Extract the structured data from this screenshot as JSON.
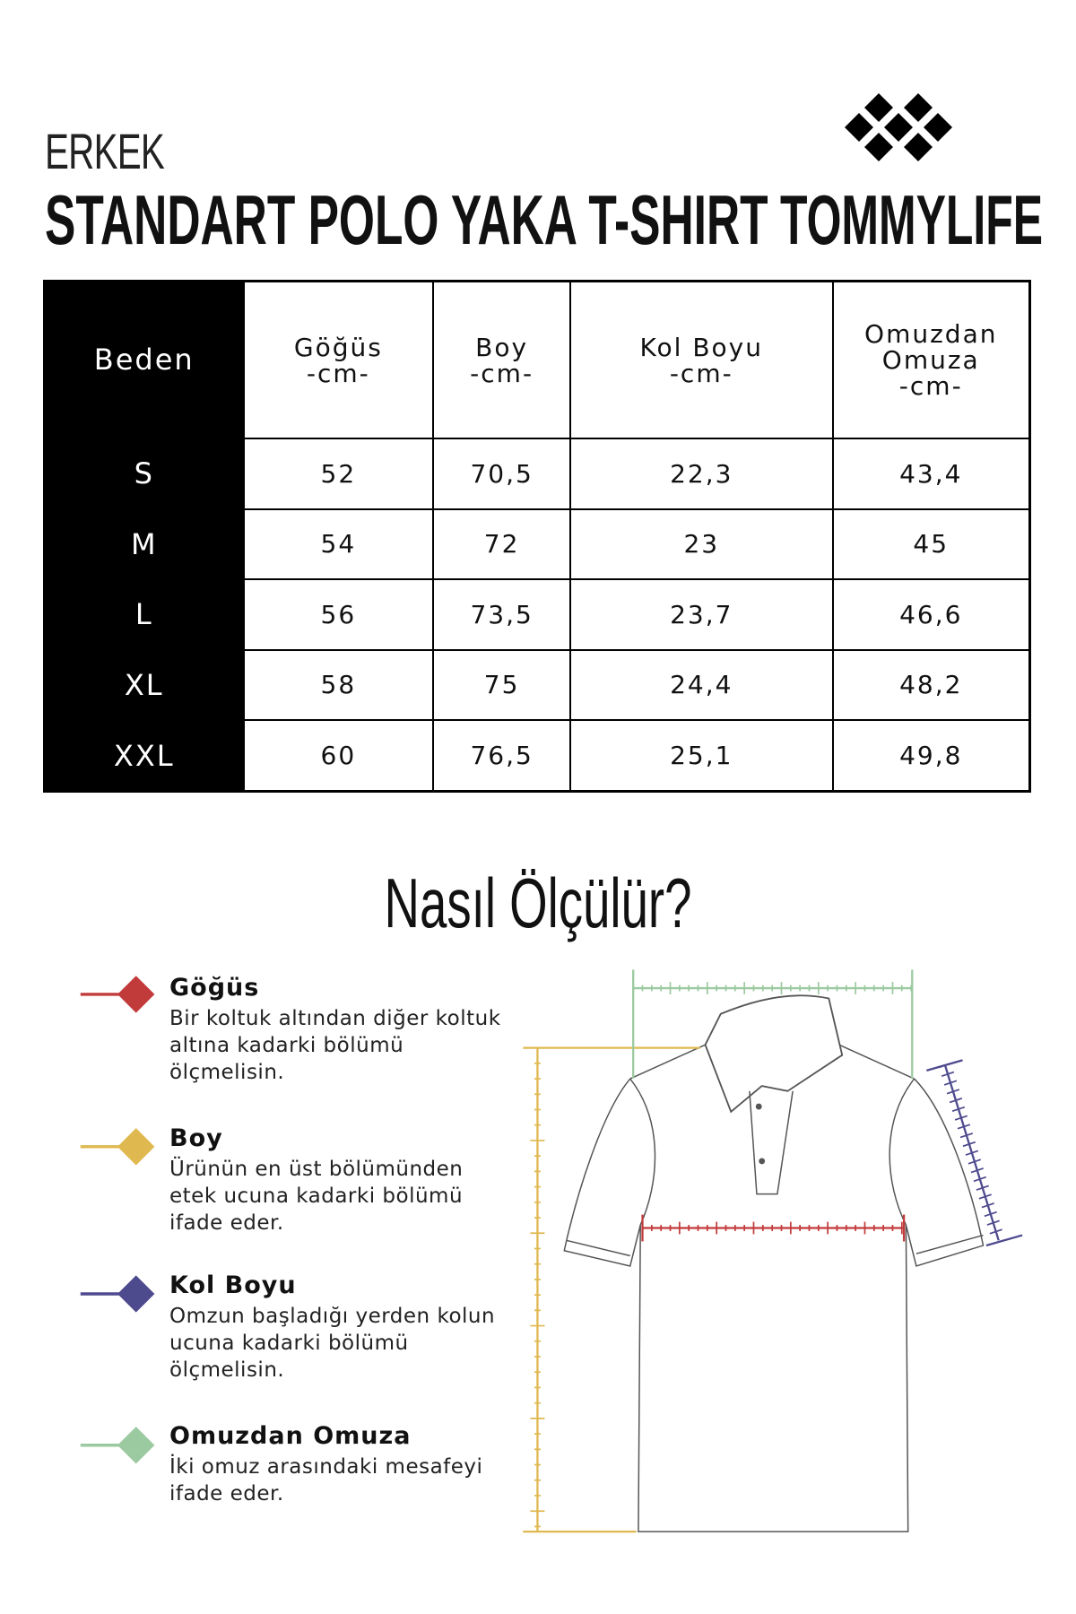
{
  "header": {
    "subtitle": "ERKEK",
    "title": "STANDART POLO YAKA T-SHIRT",
    "brand": "TOMMYLIFE"
  },
  "table": {
    "headers": [
      [
        "Beden",
        ""
      ],
      [
        "Göğüs",
        "-cm-"
      ],
      [
        "Boy",
        "-cm-"
      ],
      [
        "Kol Boyu",
        "-cm-"
      ],
      [
        "Omuzdan Omuza",
        "-cm-"
      ]
    ],
    "rows": [
      [
        "S",
        "52",
        "70,5",
        "22,3",
        "43,4"
      ],
      [
        "M",
        "54",
        "72",
        "23",
        "45"
      ],
      [
        "L",
        "56",
        "73,5",
        "23,7",
        "46,6"
      ],
      [
        "XL",
        "58",
        "75",
        "24,4",
        "48,2"
      ],
      [
        "XXL",
        "60",
        "76,5",
        "25,1",
        "49,8"
      ]
    ]
  },
  "how_to": {
    "title": "Nasıl Ölçülür?",
    "items": [
      {
        "label": "Göğüs",
        "text": "Bir koltuk altından diğer koltuk altına kadarki bölümü ölçmelisin.",
        "color": "#c23b3b"
      },
      {
        "label": "Boy",
        "text": "Ürünün en üst bölümünden etek ucuna kadarki bölümü ifade eder.",
        "color": "#dfb84f"
      },
      {
        "label": "Kol Boyu",
        "text": "Omzun başladığı yerden kolun ucuna kadarki bölümü ölçmelisin.",
        "color": "#4e4a8e"
      },
      {
        "label": "Omuzdan Omuza",
        "text": "İki omuz arasındaki mesafeyi ifade eder.",
        "color": "#9ccaa0"
      }
    ]
  }
}
